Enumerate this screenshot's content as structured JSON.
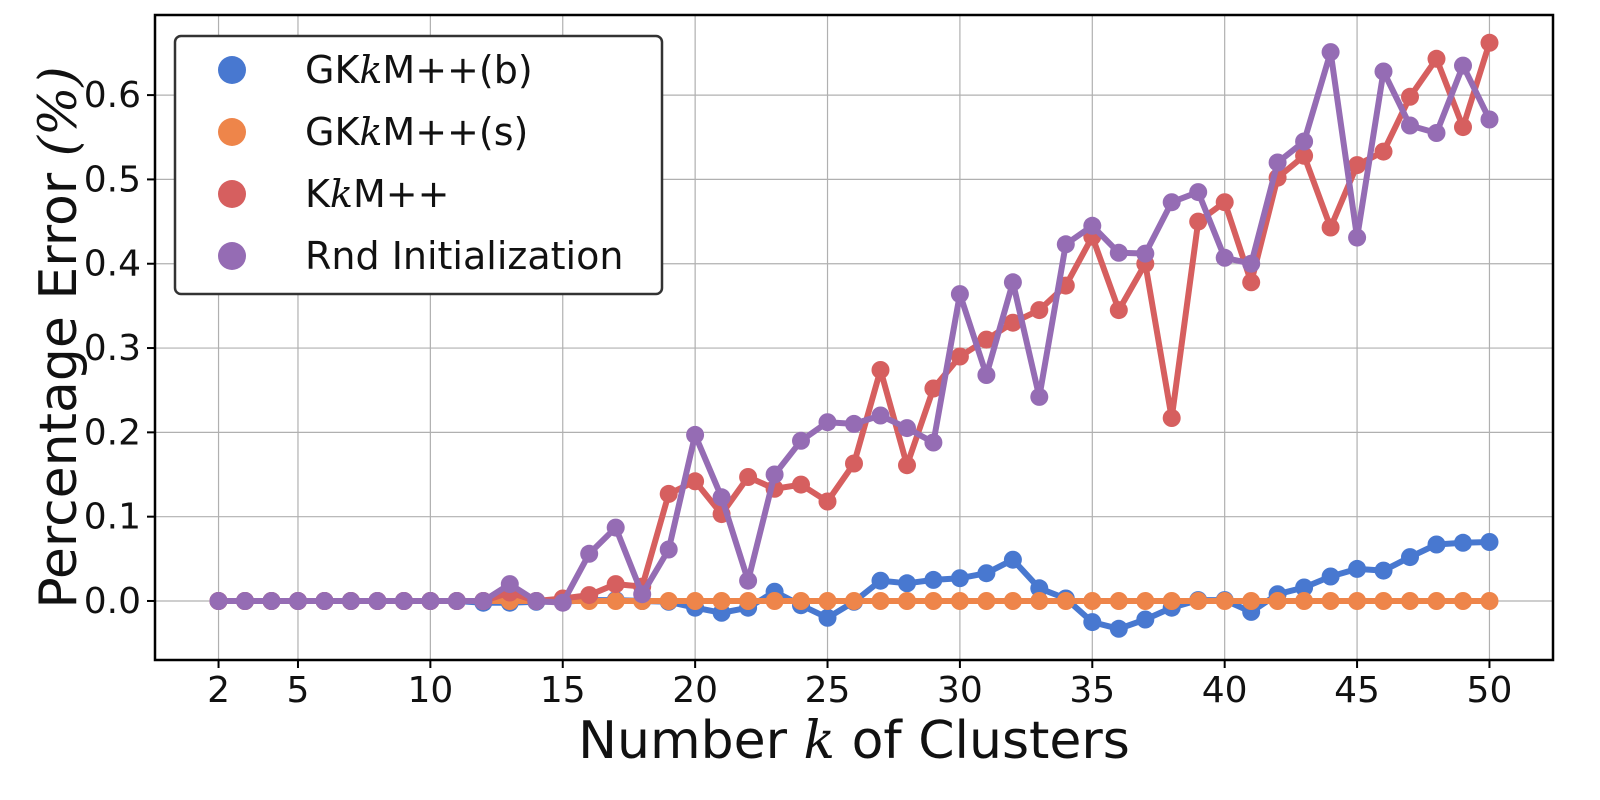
{
  "chart_data": {
    "type": "line",
    "title": "",
    "xlabel": {
      "pre": "Number ",
      "math": "k",
      "post": " of Clusters"
    },
    "ylabel": {
      "pre": "Percentage Error ",
      "math": "(%)"
    },
    "xlim": [
      -0.4,
      52.4
    ],
    "ylim": [
      -0.07,
      0.695
    ],
    "xticks": [
      2,
      5,
      10,
      15,
      20,
      25,
      30,
      35,
      40,
      45,
      50
    ],
    "yticks": [
      0.0,
      0.1,
      0.2,
      0.3,
      0.4,
      0.5,
      0.6
    ],
    "ytick_labels": [
      "0.0",
      "0.1",
      "0.2",
      "0.3",
      "0.4",
      "0.5",
      "0.6"
    ],
    "grid": true,
    "legend_position": "upper-left",
    "x": [
      2,
      3,
      4,
      5,
      6,
      7,
      8,
      9,
      10,
      11,
      12,
      13,
      14,
      15,
      16,
      17,
      18,
      19,
      20,
      21,
      22,
      23,
      24,
      25,
      26,
      27,
      28,
      29,
      30,
      31,
      32,
      33,
      34,
      35,
      36,
      37,
      38,
      39,
      40,
      41,
      42,
      43,
      44,
      45,
      46,
      47,
      48,
      49,
      50
    ],
    "series": [
      {
        "name": {
          "pre": "GK",
          "math": "k",
          "post": "M++(b)"
        },
        "color": "#4878d0",
        "values": [
          0,
          0,
          0,
          0,
          0,
          0,
          0,
          0,
          0,
          0,
          -0.002,
          -0.002,
          -0.001,
          -0.001,
          0.001,
          0.001,
          0,
          -0.001,
          -0.008,
          -0.014,
          -0.008,
          0.011,
          -0.005,
          -0.02,
          -0.001,
          0.024,
          0.021,
          0.025,
          0.027,
          0.033,
          0.049,
          0.015,
          0.003,
          -0.025,
          -0.033,
          -0.022,
          -0.008,
          0.001,
          0.001,
          -0.013,
          0.008,
          0.016,
          0.029,
          0.038,
          0.036,
          0.052,
          0.067,
          0.069,
          0.07
        ]
      },
      {
        "name": {
          "pre": "GK",
          "math": "k",
          "post": "M++(s)"
        },
        "color": "#ee854a",
        "values": [
          0,
          0,
          0,
          0,
          0,
          0,
          0,
          0,
          0,
          0,
          0,
          0,
          0,
          0,
          0,
          0,
          0,
          0,
          0,
          0,
          0,
          0,
          0,
          0,
          0,
          0,
          0,
          0,
          0,
          0,
          0,
          0,
          0,
          0,
          0,
          0,
          0,
          0,
          0,
          0,
          0,
          0,
          0,
          0,
          0,
          0,
          0,
          0,
          0
        ]
      },
      {
        "name": {
          "pre": "K",
          "math": "k",
          "post": "M++"
        },
        "color": "#d65f5f",
        "values": [
          0,
          0,
          0,
          0,
          0,
          0,
          0,
          0,
          0,
          0,
          0,
          0.01,
          0,
          0.003,
          0.007,
          0.02,
          0.017,
          0.127,
          0.142,
          0.103,
          0.147,
          0.133,
          0.138,
          0.118,
          0.163,
          0.274,
          0.161,
          0.252,
          0.29,
          0.31,
          0.33,
          0.345,
          0.374,
          0.432,
          0.345,
          0.4,
          0.217,
          0.45,
          0.473,
          0.378,
          0.502,
          0.528,
          0.443,
          0.517,
          0.533,
          0.598,
          0.643,
          0.562,
          0.662
        ]
      },
      {
        "name": {
          "pre": "Rnd Initialization",
          "math": "",
          "post": ""
        },
        "color": "#956cb4",
        "values": [
          0,
          0,
          0,
          0,
          0,
          0,
          0,
          0,
          0,
          0,
          0,
          0.02,
          0,
          -0.002,
          0.056,
          0.087,
          0.008,
          0.061,
          0.197,
          0.123,
          0.024,
          0.15,
          0.19,
          0.212,
          0.21,
          0.22,
          0.205,
          0.188,
          0.364,
          0.268,
          0.378,
          0.242,
          0.423,
          0.445,
          0.413,
          0.412,
          0.473,
          0.485,
          0.407,
          0.4,
          0.52,
          0.545,
          0.651,
          0.431,
          0.628,
          0.564,
          0.555,
          0.635,
          0.571
        ]
      }
    ]
  }
}
